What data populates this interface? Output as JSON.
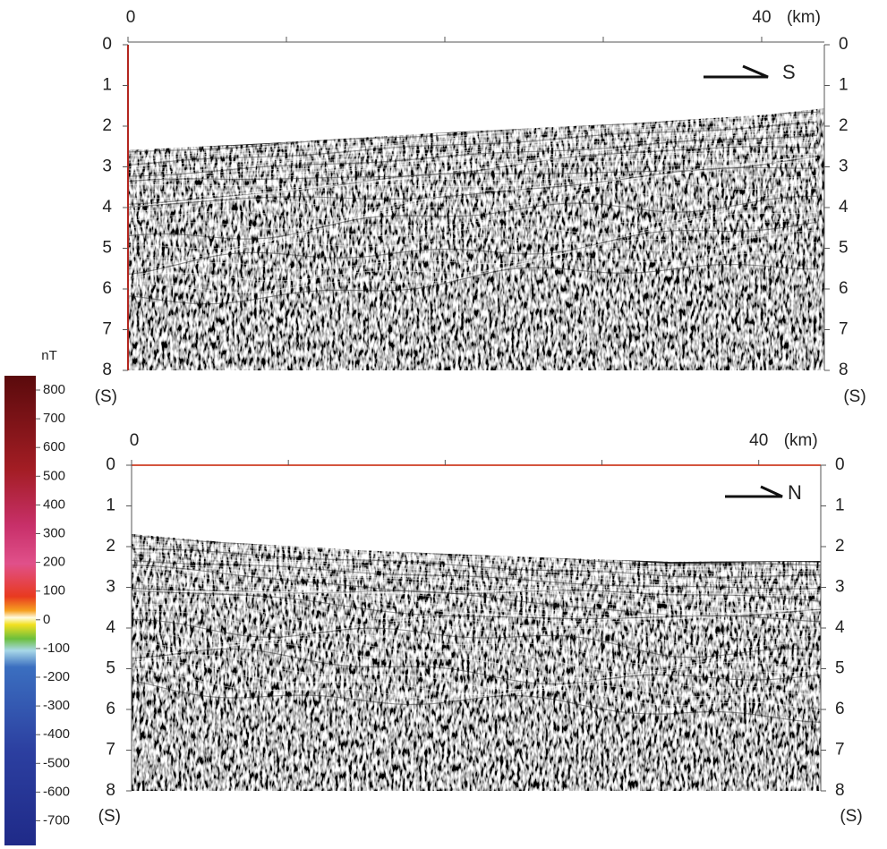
{
  "top_panel": {
    "x_labels": [
      0,
      40
    ],
    "x_unit": "(km)",
    "y_ticks_left": [
      0,
      1,
      2,
      3,
      4,
      5,
      6,
      7,
      8
    ],
    "y_ticks_right": [
      0,
      1,
      2,
      3,
      4,
      5,
      6,
      7,
      8
    ],
    "y_unit_left": "(S)",
    "y_unit_right": "(S)",
    "direction": "S"
  },
  "bottom_panel": {
    "x_labels": [
      0,
      40
    ],
    "x_unit": "(km)",
    "y_ticks_left": [
      0,
      1,
      2,
      3,
      4,
      5,
      6,
      7,
      8
    ],
    "y_ticks_right": [
      0,
      1,
      2,
      3,
      4,
      5,
      6,
      7,
      8
    ],
    "y_unit_left": "(S)",
    "y_unit_right": "(S)",
    "direction": "N"
  },
  "colorbar": {
    "unit": "nT",
    "labels": [
      800,
      700,
      600,
      500,
      400,
      300,
      200,
      100,
      0,
      -100,
      -200,
      -300,
      -400,
      -500,
      -600,
      -700
    ]
  }
}
